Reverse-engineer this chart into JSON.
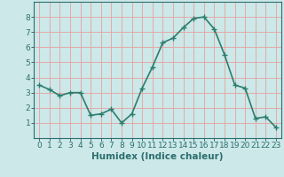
{
  "x": [
    0,
    1,
    2,
    3,
    4,
    5,
    6,
    7,
    8,
    9,
    10,
    11,
    12,
    13,
    14,
    15,
    16,
    17,
    18,
    19,
    20,
    21,
    22,
    23
  ],
  "y": [
    3.5,
    3.2,
    2.8,
    3.0,
    3.0,
    1.5,
    1.6,
    1.9,
    1.0,
    1.6,
    3.3,
    4.7,
    6.3,
    6.6,
    7.3,
    7.9,
    8.0,
    7.2,
    5.5,
    3.5,
    3.3,
    1.3,
    1.4,
    0.7
  ],
  "line_color": "#2d7d6e",
  "marker": "+",
  "marker_size": 4,
  "bg_color": "#cce8e8",
  "grid_color": "#e8a0a0",
  "xlabel": "Humidex (Indice chaleur)",
  "ylim": [
    0,
    9
  ],
  "xlim": [
    -0.5,
    23.5
  ],
  "yticks": [
    1,
    2,
    3,
    4,
    5,
    6,
    7,
    8
  ],
  "xticks": [
    0,
    1,
    2,
    3,
    4,
    5,
    6,
    7,
    8,
    9,
    10,
    11,
    12,
    13,
    14,
    15,
    16,
    17,
    18,
    19,
    20,
    21,
    22,
    23
  ],
  "xlabel_fontsize": 7.5,
  "tick_fontsize": 6.5,
  "line_width": 1.2,
  "spine_color": "#2d6e6e",
  "tick_color": "#2d6e6e",
  "text_color": "#2d6e6e"
}
